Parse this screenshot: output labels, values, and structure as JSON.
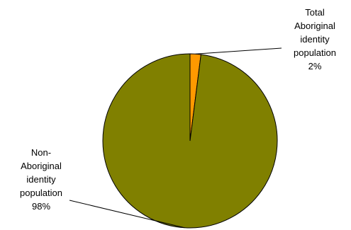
{
  "chart_data": {
    "type": "pie",
    "slices": [
      {
        "label_lines": [
          "Total",
          "Aboriginal",
          "identity",
          "population",
          "2%"
        ],
        "value": 2,
        "color": "#FF9900"
      },
      {
        "label_lines": [
          "Non-",
          "Aboriginal",
          "identity",
          "population",
          "98%"
        ],
        "value": 98,
        "color": "#808000"
      }
    ]
  }
}
